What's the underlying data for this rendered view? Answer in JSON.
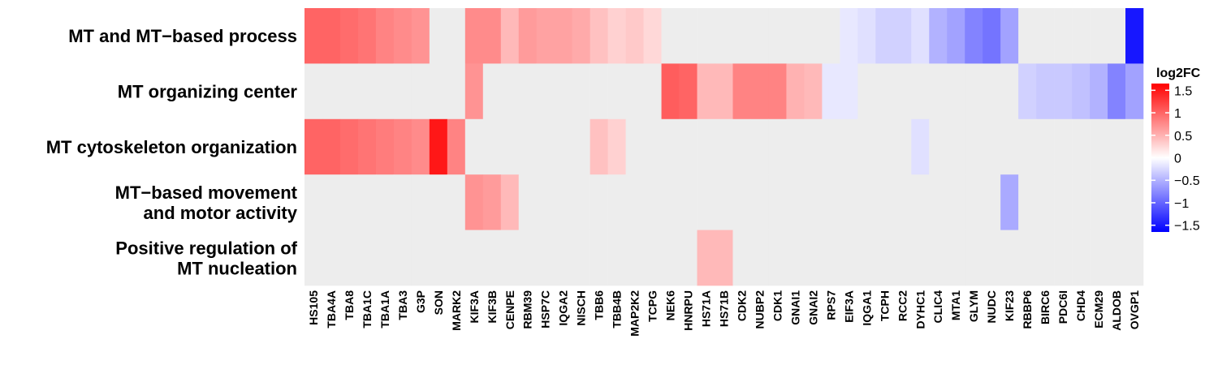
{
  "chart_data": {
    "type": "heatmap",
    "rows": [
      "MT and MT−based process",
      "MT organizing center",
      "MT cytoskeleton organization",
      [
        "MT−based movement",
        "and motor activity"
      ],
      [
        "Positive regulation of",
        "MT nucleation"
      ]
    ],
    "columns": [
      "HS105",
      "TBA4A",
      "TBA8",
      "TBA1C",
      "TBA1A",
      "TBA3",
      "G3P",
      "SON",
      "MARK2",
      "KIF3A",
      "KIF3B",
      "CENPE",
      "RBM39",
      "HSP7C",
      "IQGA2",
      "NISCH",
      "TBB6",
      "TBB4B",
      "MAP2K2",
      "TCPG",
      "NEK6",
      "HNRPU",
      "HS71A",
      "HS71B",
      "CDK2",
      "NUBP2",
      "CDK1",
      "GNAI1",
      "GNAI2",
      "RPS7",
      "EIF3A",
      "IQGA1",
      "TCPH",
      "RCC2",
      "DYHC1",
      "CLIC4",
      "MTA1",
      "GLYM",
      "NUDC",
      "KIF23",
      "RBBP6",
      "BIRC6",
      "PDC6I",
      "CHD4",
      "ECM29",
      "ALDOB",
      "OVGP1"
    ],
    "values": [
      [
        1.0,
        1.0,
        0.95,
        0.9,
        0.8,
        0.75,
        0.7,
        null,
        null,
        0.75,
        0.75,
        0.45,
        0.65,
        0.6,
        0.6,
        0.55,
        0.4,
        0.3,
        0.35,
        0.25,
        null,
        null,
        null,
        null,
        null,
        null,
        null,
        null,
        null,
        null,
        -0.15,
        -0.2,
        -0.3,
        -0.3,
        -0.2,
        -0.5,
        -0.6,
        -0.8,
        -0.9,
        -0.6,
        null,
        null,
        null,
        null,
        null,
        null,
        -1.5
      ],
      [
        null,
        null,
        null,
        null,
        null,
        null,
        null,
        null,
        null,
        0.7,
        null,
        null,
        null,
        null,
        null,
        null,
        null,
        null,
        null,
        null,
        1.05,
        1.0,
        0.45,
        0.45,
        0.8,
        0.8,
        0.8,
        0.5,
        0.45,
        -0.15,
        -0.15,
        null,
        null,
        null,
        null,
        null,
        null,
        null,
        null,
        null,
        -0.3,
        -0.35,
        -0.35,
        -0.4,
        -0.5,
        -0.8,
        -0.6
      ],
      [
        1.0,
        1.0,
        0.95,
        0.9,
        0.85,
        0.8,
        0.75,
        1.5,
        0.8,
        null,
        null,
        null,
        null,
        null,
        null,
        null,
        0.4,
        0.3,
        null,
        null,
        null,
        null,
        null,
        null,
        null,
        null,
        null,
        null,
        null,
        null,
        null,
        null,
        null,
        null,
        -0.2,
        null,
        null,
        null,
        null,
        null,
        null,
        null,
        null,
        null,
        null,
        null,
        null
      ],
      [
        null,
        null,
        null,
        null,
        null,
        null,
        null,
        null,
        null,
        0.7,
        0.65,
        0.45,
        null,
        null,
        null,
        null,
        null,
        null,
        null,
        null,
        null,
        null,
        null,
        null,
        null,
        null,
        null,
        null,
        null,
        null,
        null,
        null,
        null,
        null,
        null,
        null,
        null,
        null,
        null,
        -0.55,
        null,
        null,
        null,
        null,
        null,
        null,
        null
      ],
      [
        null,
        null,
        null,
        null,
        null,
        null,
        null,
        null,
        null,
        null,
        null,
        null,
        null,
        null,
        null,
        null,
        null,
        null,
        null,
        null,
        null,
        null,
        0.45,
        0.45,
        null,
        null,
        null,
        null,
        null,
        null,
        null,
        null,
        null,
        null,
        null,
        null,
        null,
        null,
        null,
        null,
        null,
        null,
        null,
        null,
        null,
        null,
        null
      ]
    ],
    "legend": {
      "title": "log2FC",
      "ticks": [
        "1.5",
        "1",
        "0.5",
        "0",
        "−0.5",
        "−1",
        "−1.5"
      ],
      "tick_values": [
        1.5,
        1,
        0.5,
        0,
        -0.5,
        -1,
        -1.5
      ],
      "range": [
        -1.65,
        1.65
      ],
      "placement": "right"
    },
    "colors": {
      "high": "#ff0000",
      "mid": "#ffffff",
      "low": "#0000ff",
      "na": "#ededed"
    },
    "grid": false
  }
}
